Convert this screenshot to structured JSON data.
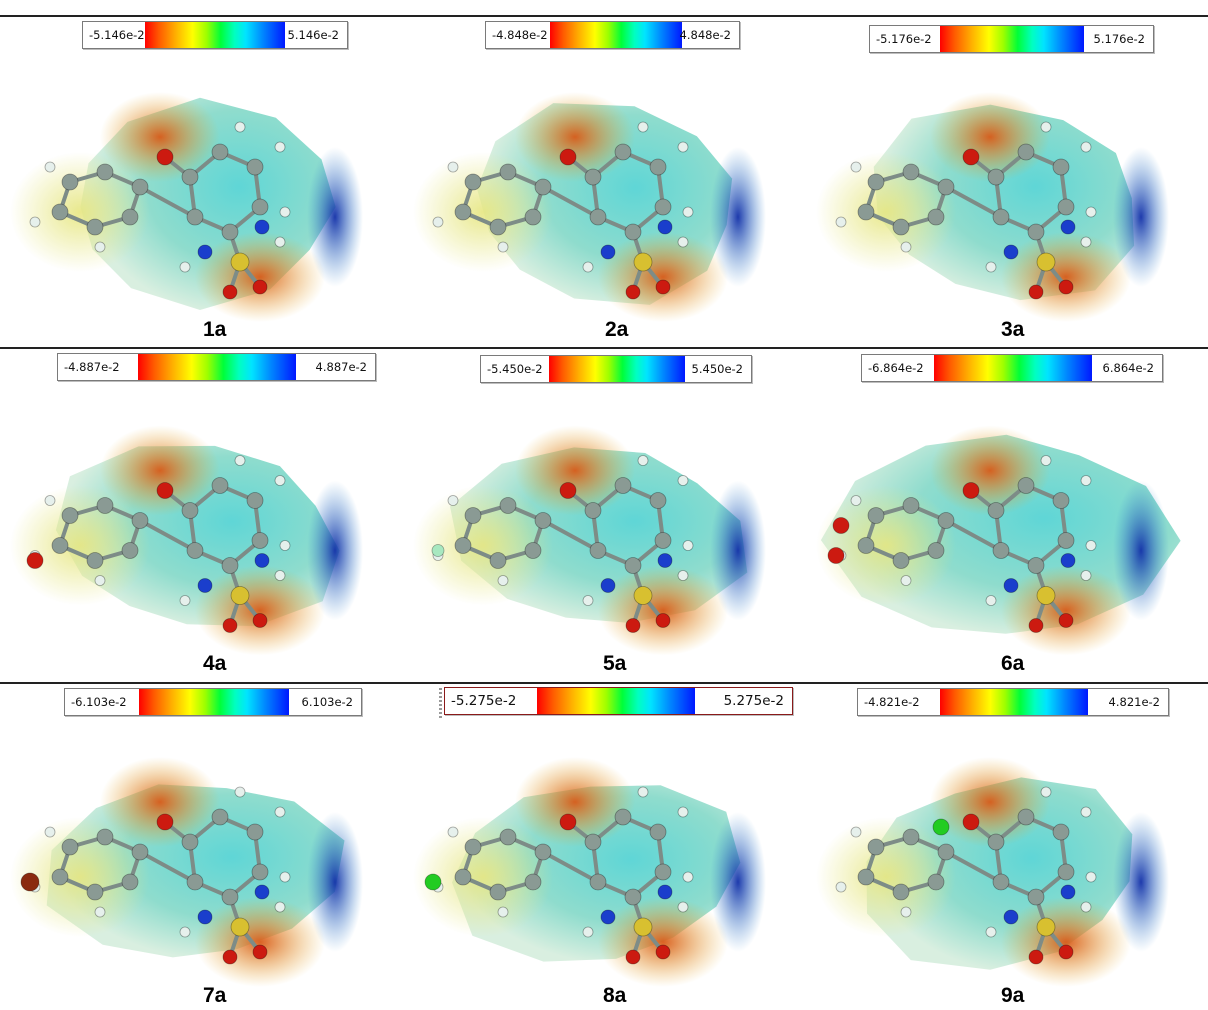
{
  "panels": [
    {
      "id": "1a",
      "min": "-5.146e-2",
      "max": "5.146e-2",
      "label": "1a"
    },
    {
      "id": "2a",
      "min": "-4.848e-2",
      "max": "4.848e-2",
      "label": "2a"
    },
    {
      "id": "3a",
      "min": "-5.176e-2",
      "max": "5.176e-2",
      "label": "3a"
    },
    {
      "id": "4a",
      "min": "-4.887e-2",
      "max": "4.887e-2",
      "label": "4a"
    },
    {
      "id": "5a",
      "min": "-5.450e-2",
      "max": "5.450e-2",
      "label": "5a"
    },
    {
      "id": "6a",
      "min": "-6.864e-2",
      "max": "6.864e-2",
      "label": "6a"
    },
    {
      "id": "7a",
      "min": "-6.103e-2",
      "max": "6.103e-2",
      "label": "7a"
    },
    {
      "id": "8a",
      "min": "-5.275e-2",
      "max": "5.275e-2",
      "label": "8a"
    },
    {
      "id": "9a",
      "min": "-4.821e-2",
      "max": "4.821e-2",
      "label": "9a"
    }
  ],
  "colors": {
    "negative": "#ff0000",
    "neutral": "#00ff38",
    "positive": "#0018ff",
    "surface": "#8fdccd",
    "oxygen": "#cc1a10",
    "nitrogen": "#1a3ecc",
    "sulfur": "#d8c030",
    "carbon": "#8a9a94",
    "hydrogen": "#e6f0ec",
    "bromine": "#8a2a10",
    "chlorine": "#22cc22",
    "fluorine": "#a8e8c0"
  },
  "icons": {
    "colorbar": "color-scale-bar",
    "molecule": "mep-surface-molecule"
  }
}
